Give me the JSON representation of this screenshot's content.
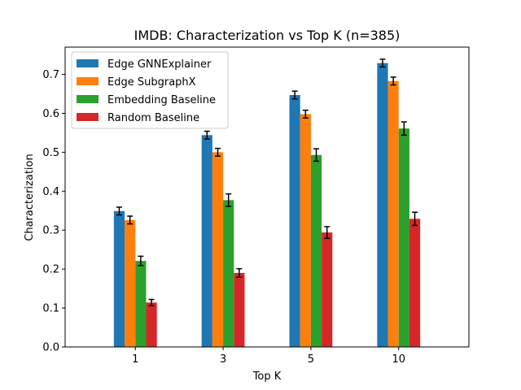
{
  "chart_data": {
    "type": "bar",
    "title": "IMDB: Characterization vs Top K (n=385)",
    "xlabel": "Top K",
    "ylabel": "Characterization",
    "categories": [
      "1",
      "3",
      "5",
      "10"
    ],
    "ylim": [
      0,
      0.77
    ],
    "yticks": [
      "0.0",
      "0.1",
      "0.2",
      "0.3",
      "0.4",
      "0.5",
      "0.6",
      "0.7"
    ],
    "grid": false,
    "legend_position": "top-left",
    "series": [
      {
        "name": "Edge GNNExplainer",
        "color": "#1f77b4",
        "values": [
          0.349,
          0.544,
          0.647,
          0.729
        ],
        "errors": [
          0.01,
          0.01,
          0.01,
          0.01
        ]
      },
      {
        "name": "Edge SubgraphX",
        "color": "#ff7f0e",
        "values": [
          0.326,
          0.5,
          0.598,
          0.683
        ],
        "errors": [
          0.01,
          0.01,
          0.01,
          0.01
        ]
      },
      {
        "name": "Embedding Baseline",
        "color": "#2ca02c",
        "values": [
          0.221,
          0.377,
          0.493,
          0.561
        ],
        "errors": [
          0.012,
          0.016,
          0.016,
          0.017
        ]
      },
      {
        "name": "Random Baseline",
        "color": "#d62728",
        "values": [
          0.114,
          0.19,
          0.294,
          0.329
        ],
        "errors": [
          0.008,
          0.011,
          0.015,
          0.017
        ]
      }
    ]
  }
}
